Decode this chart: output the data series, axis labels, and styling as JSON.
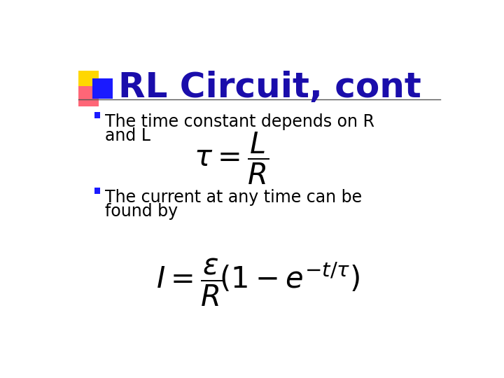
{
  "title": "RL Circuit, cont",
  "title_color": "#1a0dab",
  "title_fontsize": 36,
  "background_color": "#ffffff",
  "bullet1_line1": "The time constant depends on R",
  "bullet1_line2": "and L",
  "bullet2_line1": "The current at any time can be",
  "bullet2_line2": "found by",
  "bullet_color": "#1a1aff",
  "text_color": "#000000",
  "decoration_yellow": "#FFD700",
  "decoration_pink": "#FF6677",
  "decoration_blue": "#1a1aff",
  "line_color": "#555555"
}
